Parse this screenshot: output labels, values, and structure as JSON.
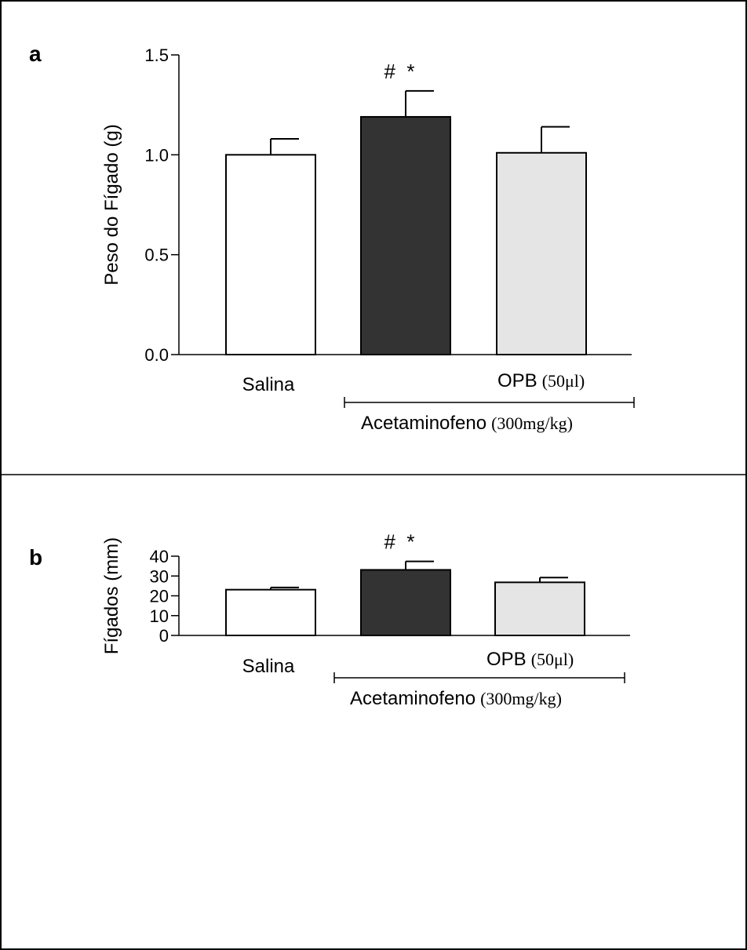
{
  "chart_data": [
    {
      "type": "bar",
      "panel_label": "a",
      "ylabel": "Peso do Fígado (g)",
      "ylim": [
        0,
        1.5
      ],
      "yticks": [
        "0.0",
        "0.5",
        "1.0",
        "1.5"
      ],
      "ytick_values": [
        0,
        0.5,
        1.0,
        1.5
      ],
      "categories": [
        "Salina",
        "Acetaminofeno",
        "OPB"
      ],
      "values": [
        1.0,
        1.19,
        1.01
      ],
      "errors": [
        0.08,
        0.13,
        0.13
      ],
      "bar_colors": [
        "#ffffff",
        "#333333",
        "#e5e5e5"
      ],
      "significance": [
        null,
        "#  *",
        null
      ],
      "category_labels": {
        "salina": "Salina",
        "opb_main": "OPB",
        "opb_dose": "(50μl)",
        "group_main": "Acetaminofeno",
        "group_dose": "(300mg/kg)"
      }
    },
    {
      "type": "bar",
      "panel_label": "b",
      "ylabel": "Fígados (mm)",
      "ylim": [
        0,
        40
      ],
      "yticks": [
        "0",
        "10",
        "20",
        "30",
        "40"
      ],
      "ytick_values": [
        0,
        10,
        20,
        30,
        40
      ],
      "categories": [
        "Salina",
        "Acetaminofeno",
        "OPB"
      ],
      "values": [
        23.1,
        33.1,
        26.8
      ],
      "errors": [
        1.1,
        4.3,
        2.4
      ],
      "bar_colors": [
        "#ffffff",
        "#333333",
        "#e5e5e5"
      ],
      "significance": [
        null,
        "#  *",
        null
      ],
      "category_labels": {
        "salina": "Salina",
        "opb_main": "OPB",
        "opb_dose": "(50μl)",
        "group_main": "Acetaminofeno",
        "group_dose": "(300mg/kg)"
      }
    }
  ]
}
